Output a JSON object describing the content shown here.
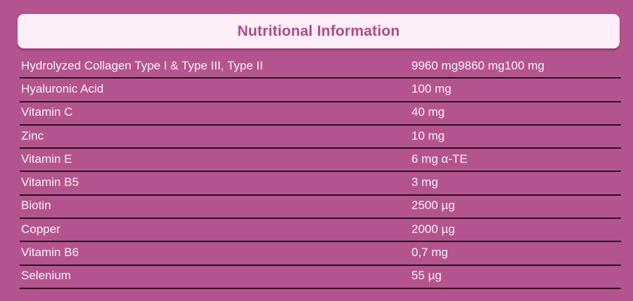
{
  "header": {
    "title": "Nutritional Information"
  },
  "table": {
    "rows": [
      {
        "name": "Hydrolyzed Collagen Type I & Type III, Type II",
        "amount": "9960 mg9860 mg100 mg"
      },
      {
        "name": "Hyaluronic Acid",
        "amount": "100 mg"
      },
      {
        "name": "Vitamin C",
        "amount": "40 mg"
      },
      {
        "name": "Zinc",
        "amount": "10 mg"
      },
      {
        "name": "Vitamin E",
        "amount": "6 mg α-TE"
      },
      {
        "name": "Vitamin B5",
        "amount": "3 mg"
      },
      {
        "name": "Biotin",
        "amount": "2500 µg"
      },
      {
        "name": "Copper",
        "amount": "2000 µg"
      },
      {
        "name": "Vitamin B6",
        "amount": "0,7 mg"
      },
      {
        "name": "Selenium",
        "amount": "55 µg"
      }
    ]
  },
  "colors": {
    "background": "#b4548e",
    "card_background": "#fdeef8",
    "title_text": "#b3498c",
    "row_text": "#fdf1f8",
    "divider": "#29101d"
  }
}
